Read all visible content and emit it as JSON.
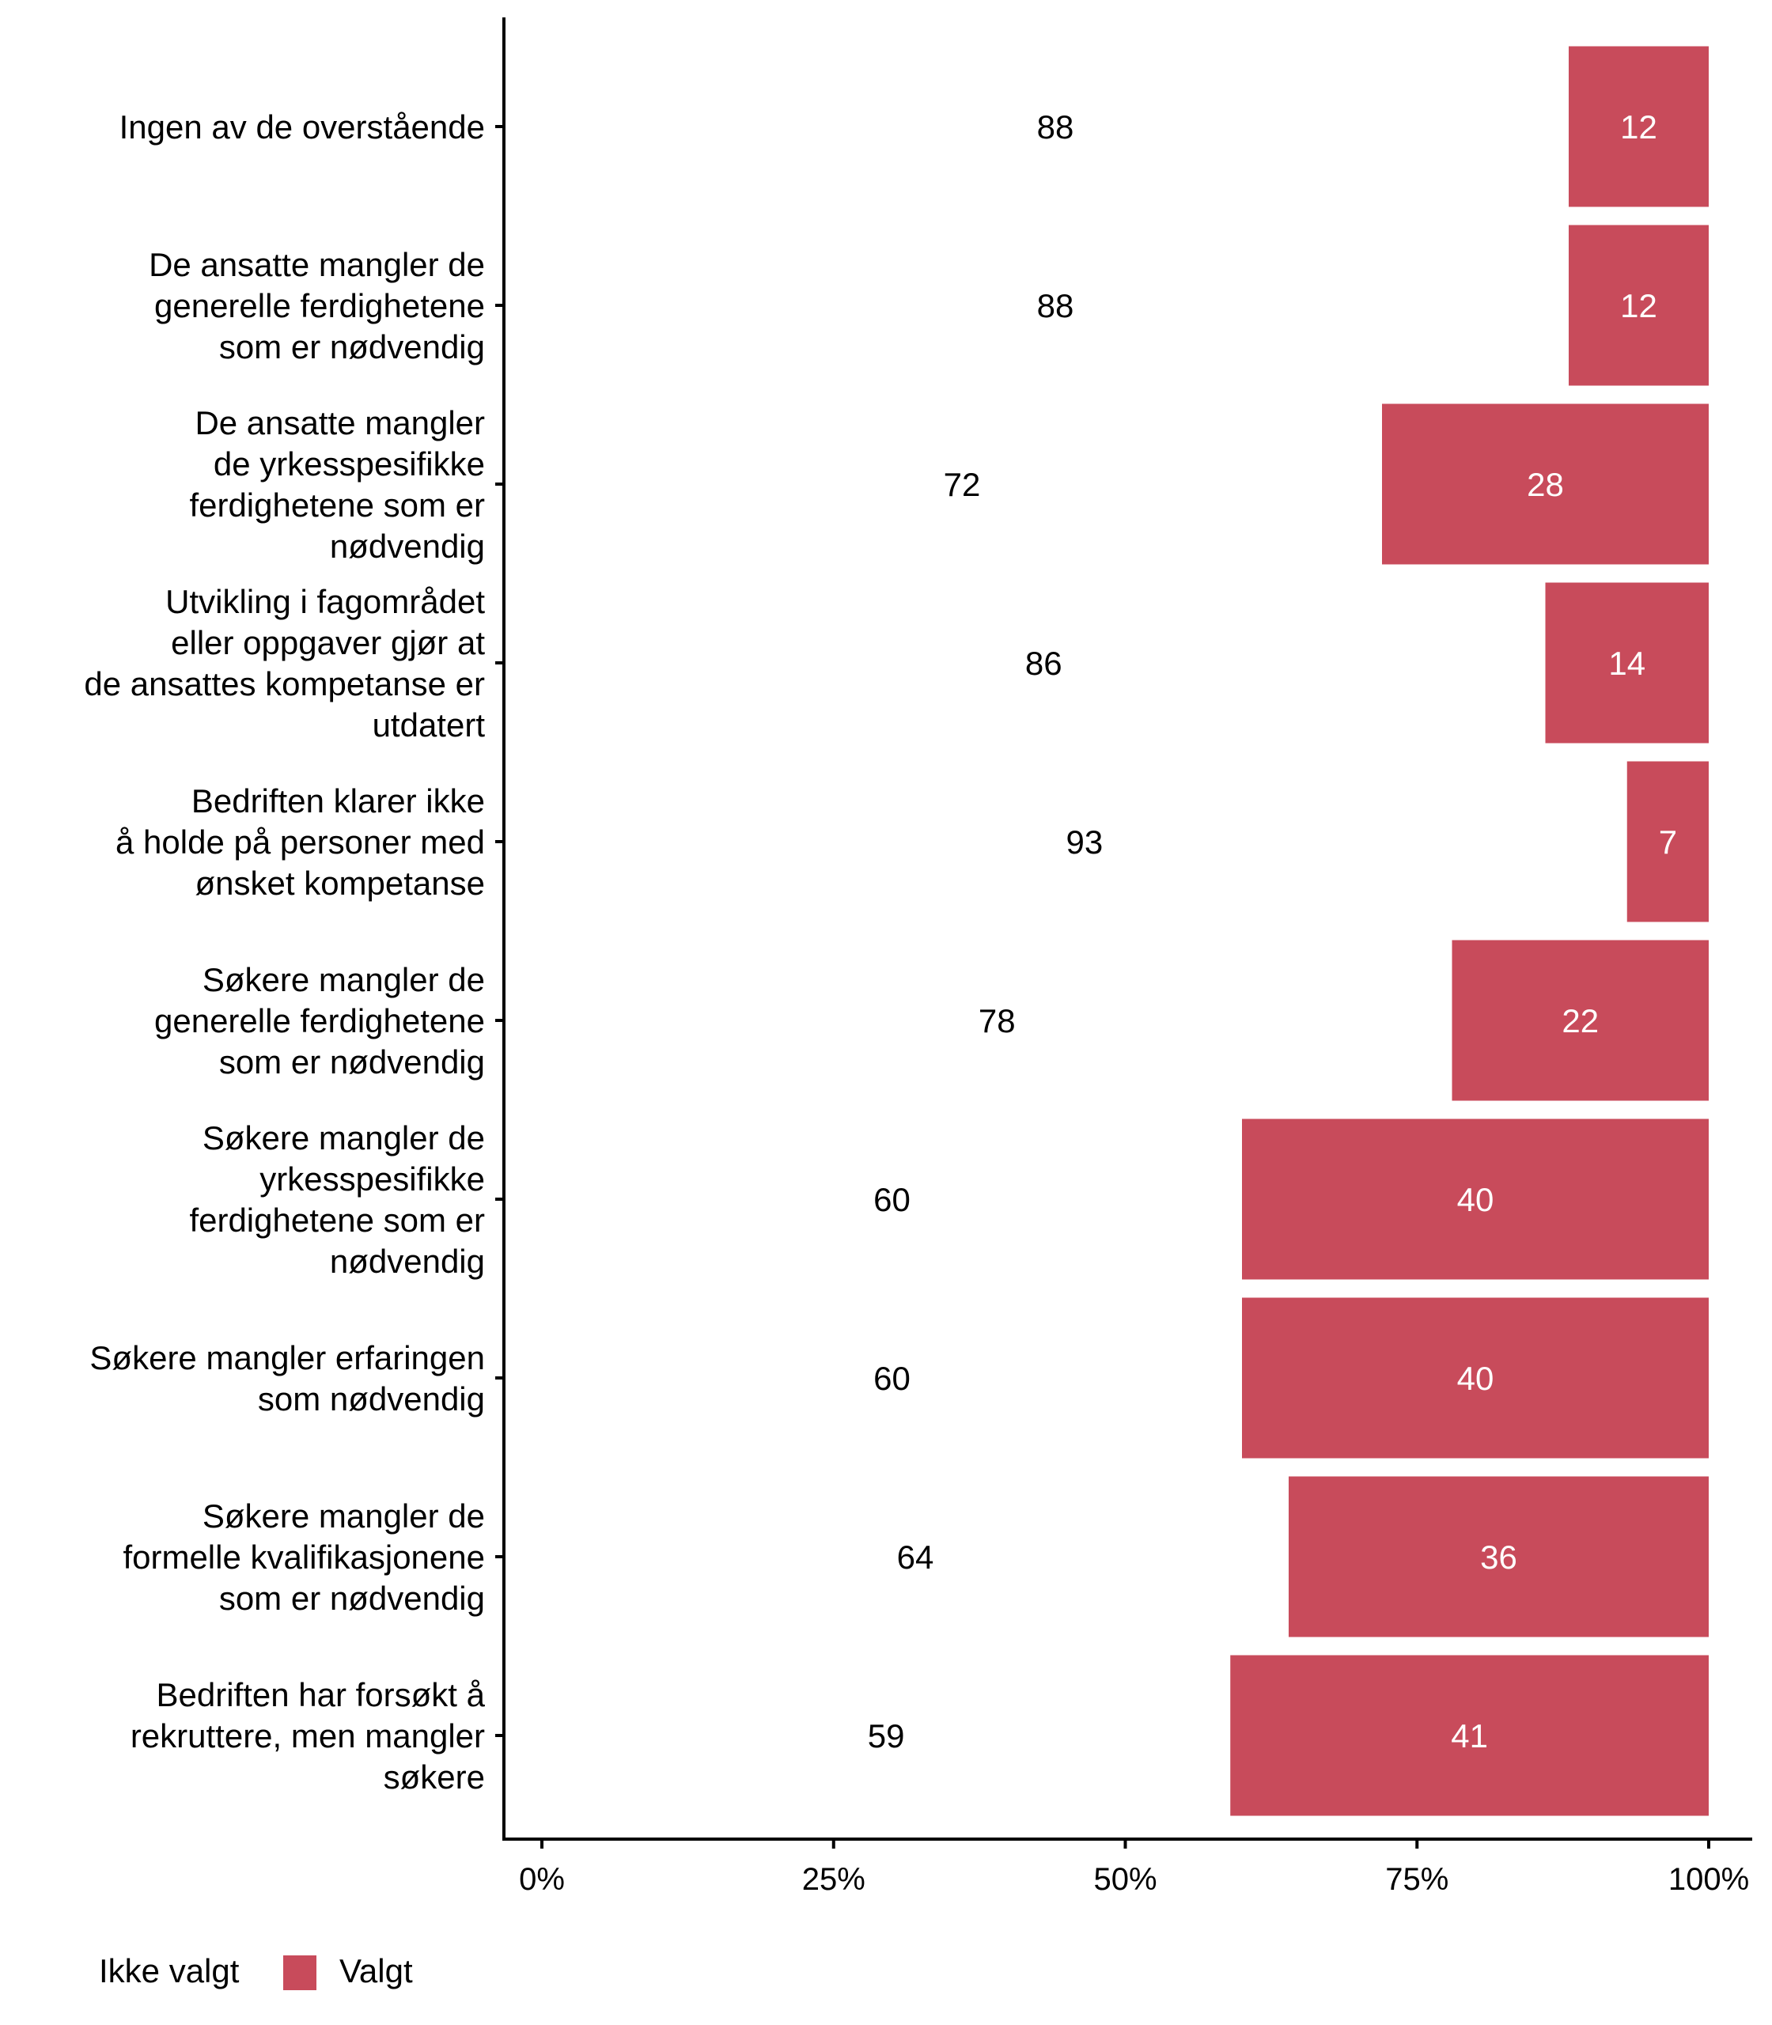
{
  "chart_data": {
    "type": "bar",
    "orientation": "horizontal",
    "stacked": "percent",
    "title": "",
    "xlabel": "",
    "ylabel": "",
    "xlim": [
      0,
      100
    ],
    "x_ticks": [
      "0%",
      "25%",
      "50%",
      "75%",
      "100%"
    ],
    "x_tick_values": [
      0,
      25,
      50,
      75,
      100
    ],
    "grid": false,
    "legend_position": "bottom-left",
    "categories": [
      [
        "Ingen av de overstående"
      ],
      [
        "De ansatte mangler de",
        "generelle ferdighetene",
        "som er nødvendig"
      ],
      [
        "De ansatte mangler",
        "de yrkesspesifikke",
        "ferdighetene som er",
        "nødvendig"
      ],
      [
        "Utvikling i fagområdet",
        "eller oppgaver gjør at",
        "de ansattes kompetanse er",
        "utdatert"
      ],
      [
        "Bedriften klarer ikke",
        "å holde på personer med",
        "ønsket kompetanse"
      ],
      [
        "Søkere mangler de",
        "generelle ferdighetene",
        "som er nødvendig"
      ],
      [
        "Søkere mangler de",
        "yrkesspesifikke",
        "ferdighetene som er",
        "nødvendig"
      ],
      [
        "Søkere mangler erfaringen",
        "som nødvendig"
      ],
      [
        "Søkere mangler de",
        "formelle kvalifikasjonene",
        "som er nødvendig"
      ],
      [
        "Bedriften har forsøkt å",
        "rekruttere, men mangler",
        "søkere"
      ]
    ],
    "series": [
      {
        "name": "Ikke valgt",
        "color": "#ffffff",
        "label_color": "#000000",
        "values": [
          88,
          88,
          72,
          86,
          93,
          78,
          60,
          60,
          64,
          59
        ]
      },
      {
        "name": "Valgt",
        "color": "#C84B5B",
        "label_color": "#ffffff",
        "values": [
          12,
          12,
          28,
          14,
          7,
          22,
          40,
          40,
          36,
          41
        ]
      }
    ]
  },
  "legend": {
    "items": [
      {
        "label": "Ikke valgt",
        "color": "#ffffff"
      },
      {
        "label": "Valgt",
        "color": "#C84B5B"
      }
    ]
  }
}
